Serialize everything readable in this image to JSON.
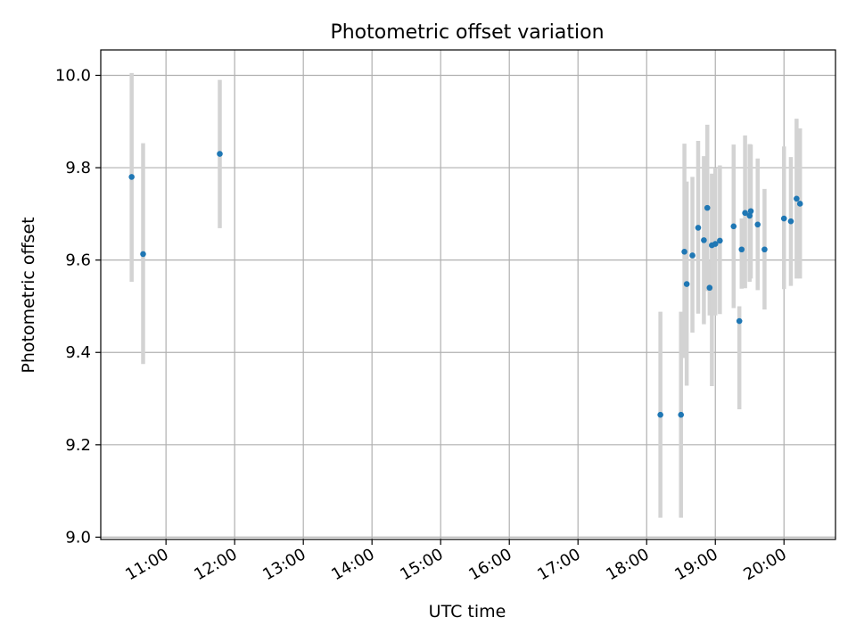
{
  "chart_data": {
    "type": "scatter",
    "title": "Photometric offset variation",
    "xlabel": "UTC time",
    "ylabel": "Photometric offset",
    "x_unit": "hours UTC",
    "xlim": [
      10.05,
      20.75
    ],
    "ylim": [
      8.995,
      10.055
    ],
    "xticks": [
      11,
      12,
      13,
      14,
      15,
      16,
      17,
      18,
      19,
      20
    ],
    "xtick_labels": [
      "11:00",
      "12:00",
      "13:00",
      "14:00",
      "15:00",
      "16:00",
      "17:00",
      "18:00",
      "19:00",
      "20:00"
    ],
    "yticks": [
      9.0,
      9.2,
      9.4,
      9.6,
      9.8,
      10.0
    ],
    "ytick_labels": [
      "9.0",
      "9.2",
      "9.4",
      "9.6",
      "9.8",
      "10.0"
    ],
    "grid": true,
    "legend": "none",
    "colors": {
      "point": "#1f77b4",
      "errorbar": "#d3d3d3",
      "grid": "#b0b0b0"
    },
    "points": [
      {
        "time": "10:30",
        "y": 9.78,
        "lo": 9.553,
        "hi": 10.005
      },
      {
        "time": "10:40",
        "y": 9.613,
        "lo": 9.375,
        "hi": 9.853
      },
      {
        "time": "11:47",
        "y": 9.83,
        "lo": 9.669,
        "hi": 9.99
      },
      {
        "time": "18:12",
        "y": 9.265,
        "lo": 9.042,
        "hi": 9.488
      },
      {
        "time": "18:30",
        "y": 9.265,
        "lo": 9.042,
        "hi": 9.488
      },
      {
        "time": "18:33",
        "y": 9.618,
        "lo": 9.388,
        "hi": 9.852
      },
      {
        "time": "18:35",
        "y": 9.548,
        "lo": 9.328,
        "hi": 9.77
      },
      {
        "time": "18:40",
        "y": 9.61,
        "lo": 9.443,
        "hi": 9.78
      },
      {
        "time": "18:45",
        "y": 9.67,
        "lo": 9.484,
        "hi": 9.858
      },
      {
        "time": "18:50",
        "y": 9.643,
        "lo": 9.461,
        "hi": 9.825
      },
      {
        "time": "18:53",
        "y": 9.713,
        "lo": 9.533,
        "hi": 9.893
      },
      {
        "time": "18:55",
        "y": 9.54,
        "lo": 9.48,
        "hi": 9.6
      },
      {
        "time": "18:57",
        "y": 9.632,
        "lo": 9.327,
        "hi": 9.787
      },
      {
        "time": "19:00",
        "y": 9.635,
        "lo": 9.48,
        "hi": 9.8
      },
      {
        "time": "19:04",
        "y": 9.642,
        "lo": 9.483,
        "hi": 9.805
      },
      {
        "time": "19:16",
        "y": 9.673,
        "lo": 9.496,
        "hi": 9.85
      },
      {
        "time": "19:21",
        "y": 9.468,
        "lo": 9.277,
        "hi": 9.5
      },
      {
        "time": "19:23",
        "y": 9.623,
        "lo": 9.538,
        "hi": 9.69
      },
      {
        "time": "19:26",
        "y": 9.702,
        "lo": 9.539,
        "hi": 9.87
      },
      {
        "time": "19:30",
        "y": 9.696,
        "lo": 9.553,
        "hi": 9.851
      },
      {
        "time": "19:31",
        "y": 9.706,
        "lo": 9.56,
        "hi": 9.85
      },
      {
        "time": "19:37",
        "y": 9.677,
        "lo": 9.535,
        "hi": 9.82
      },
      {
        "time": "19:43",
        "y": 9.623,
        "lo": 9.493,
        "hi": 9.754
      },
      {
        "time": "20:00",
        "y": 9.69,
        "lo": 9.537,
        "hi": 9.846
      },
      {
        "time": "20:06",
        "y": 9.684,
        "lo": 9.544,
        "hi": 9.823
      },
      {
        "time": "20:11",
        "y": 9.733,
        "lo": 9.56,
        "hi": 9.906
      },
      {
        "time": "20:14",
        "y": 9.722,
        "lo": 9.56,
        "hi": 9.885
      }
    ]
  }
}
